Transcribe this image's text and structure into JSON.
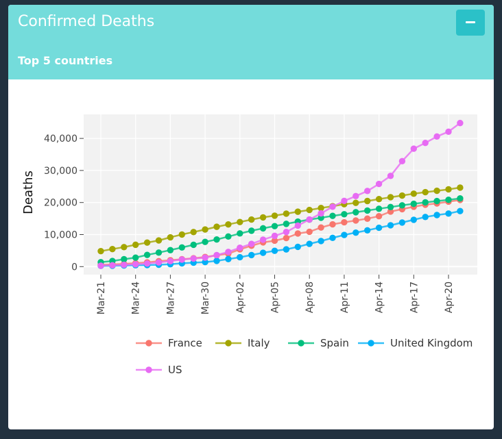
{
  "panel": {
    "title": "Confirmed Deaths",
    "subtitle": "Top 5 countries",
    "collapse_icon": "minus-icon"
  },
  "colors": {
    "page_background": "#22313f",
    "header": "#74dcdb",
    "collapse_button": "#2bc1c8",
    "plot_background": "#f2f2f2"
  },
  "chart_data": {
    "type": "line",
    "markers": true,
    "ylabel": "Deaths",
    "xlabel": "",
    "ylim": [
      -2500,
      47500
    ],
    "y_ticks": [
      0,
      10000,
      20000,
      30000,
      40000
    ],
    "y_tick_labels": [
      "0",
      "10,000",
      "20,000",
      "30,000",
      "40,000"
    ],
    "grid": true,
    "legend_position": "bottom",
    "x": [
      "Mar-21",
      "Mar-22",
      "Mar-23",
      "Mar-24",
      "Mar-25",
      "Mar-26",
      "Mar-27",
      "Mar-28",
      "Mar-29",
      "Mar-30",
      "Mar-31",
      "Apr-01",
      "Apr-02",
      "Apr-03",
      "Apr-04",
      "Apr-05",
      "Apr-06",
      "Apr-07",
      "Apr-08",
      "Apr-09",
      "Apr-10",
      "Apr-11",
      "Apr-12",
      "Apr-13",
      "Apr-14",
      "Apr-15",
      "Apr-16",
      "Apr-17",
      "Apr-18",
      "Apr-19",
      "Apr-20",
      "Apr-21"
    ],
    "x_tick_labels": [
      "Mar-21",
      "Mar-24",
      "Mar-27",
      "Mar-30",
      "Apr-02",
      "Apr-05",
      "Apr-08",
      "Apr-11",
      "Apr-14",
      "Apr-17",
      "Apr-20"
    ],
    "x_tick_indices": [
      0,
      3,
      6,
      9,
      12,
      15,
      18,
      21,
      24,
      27,
      30
    ],
    "series": [
      {
        "name": "France",
        "color": "#f8766d",
        "values": [
          560,
          680,
          860,
          1100,
          1330,
          1700,
          1990,
          2310,
          2610,
          3020,
          3520,
          4040,
          5390,
          6510,
          7570,
          8080,
          8910,
          10330,
          10870,
          12210,
          13200,
          13830,
          14390,
          14970,
          15730,
          17170,
          17920,
          18680,
          19320,
          19720,
          20260,
          20800
        ]
      },
      {
        "name": "Italy",
        "color": "#a3a500",
        "values": [
          4830,
          5480,
          6080,
          6820,
          7500,
          8170,
          9140,
          10020,
          10780,
          11590,
          12430,
          13160,
          13920,
          14680,
          15360,
          15890,
          16520,
          17130,
          17670,
          18280,
          18850,
          19470,
          19900,
          20470,
          21070,
          21650,
          22170,
          22750,
          23230,
          23660,
          24110,
          24650
        ]
      },
      {
        "name": "Spain",
        "color": "#00bf7d",
        "values": [
          1380,
          1760,
          2310,
          2810,
          3650,
          4370,
          5140,
          5990,
          6800,
          7720,
          8470,
          9390,
          10350,
          11200,
          11950,
          12640,
          13340,
          14040,
          14670,
          15240,
          15840,
          16350,
          16970,
          17490,
          18060,
          18580,
          19130,
          19610,
          20050,
          20450,
          20850,
          21290
        ]
      },
      {
        "name": "United Kingdom",
        "color": "#00b0f6",
        "values": [
          230,
          280,
          340,
          430,
          470,
          580,
          760,
          1020,
          1230,
          1420,
          1800,
          2360,
          2930,
          3610,
          4320,
          4940,
          5380,
          6170,
          7110,
          7980,
          8970,
          9870,
          10610,
          11330,
          12130,
          12890,
          13760,
          14610,
          15490,
          16090,
          16550,
          17340
        ]
      },
      {
        "name": "US",
        "color": "#e76bf3",
        "values": [
          300,
          420,
          550,
          720,
          960,
          1300,
          1700,
          2200,
          2500,
          2800,
          3600,
          4600,
          5900,
          7100,
          8400,
          9600,
          10800,
          12800,
          14700,
          16600,
          18700,
          20500,
          22000,
          23600,
          25800,
          28300,
          32900,
          36800,
          38600,
          40600,
          42100,
          44800
        ]
      }
    ]
  }
}
